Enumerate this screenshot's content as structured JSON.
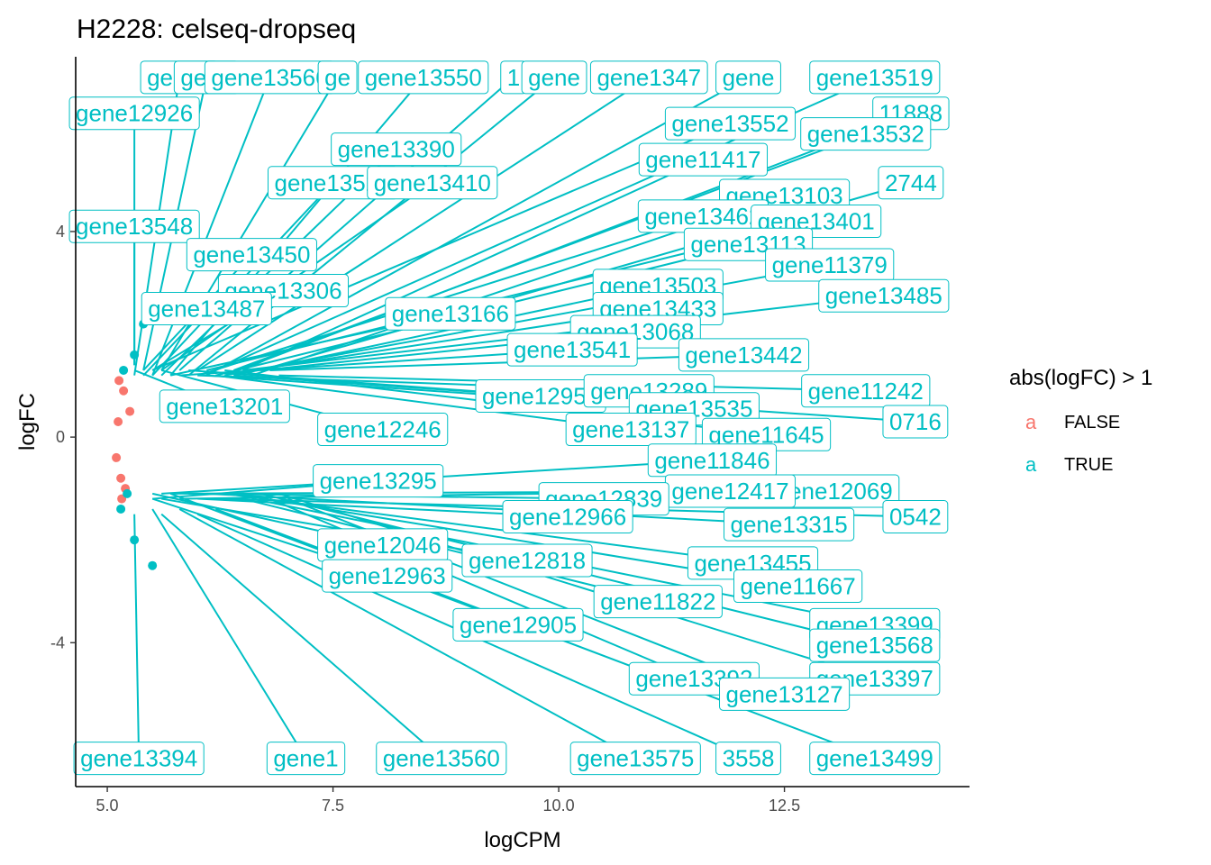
{
  "chart_data": {
    "type": "scatter",
    "title": "H2228: celseq-dropseq",
    "xlabel": "logCPM",
    "ylabel": "logFC",
    "xlim": [
      4.65,
      14.55
    ],
    "ylim": [
      -6.8,
      7.4
    ],
    "x_ticks": [
      5.0,
      7.5,
      10.0,
      12.5
    ],
    "x_tick_labels": [
      "5.0",
      "7.5",
      "10.0",
      "12.5"
    ],
    "y_ticks": [
      -4,
      0,
      4
    ],
    "y_tick_labels": [
      "-4",
      "0",
      "4"
    ],
    "grid": false,
    "legend": {
      "title": "abs(logFC) > 1",
      "position": "right",
      "entries": [
        {
          "label": "FALSE",
          "key": "a",
          "color": "#F8766D"
        },
        {
          "label": "TRUE",
          "key": "a",
          "color": "#00BFC4"
        }
      ]
    },
    "series": [
      {
        "name": "FALSE",
        "color": "#F8766D",
        "points": [
          [
            5.1,
            -0.4
          ],
          [
            5.12,
            0.3
          ],
          [
            5.15,
            -0.8
          ],
          [
            5.18,
            0.9
          ],
          [
            5.2,
            -1.0
          ],
          [
            5.13,
            1.1
          ],
          [
            5.16,
            -1.2
          ],
          [
            5.25,
            0.5
          ]
        ]
      },
      {
        "name": "TRUE",
        "color": "#00BFC4",
        "points": [
          [
            5.18,
            1.3
          ],
          [
            5.22,
            -1.1
          ],
          [
            5.3,
            1.6
          ],
          [
            5.15,
            -1.4
          ],
          [
            5.3,
            -2.0
          ],
          [
            5.4,
            2.2
          ],
          [
            5.5,
            -2.5
          ]
        ]
      }
    ],
    "labels": [
      {
        "text": "gene1",
        "x": 5.8,
        "y": 7.0,
        "px": 5.3,
        "py": 1.2
      },
      {
        "text": "gene",
        "x": 6.1,
        "y": 7.0,
        "px": 5.4,
        "py": 1.3
      },
      {
        "text": "gene13566",
        "x": 6.8,
        "y": 7.0,
        "px": 5.5,
        "py": 1.2
      },
      {
        "text": "ge",
        "x": 7.55,
        "y": 7.0,
        "px": 5.6,
        "py": 1.3
      },
      {
        "text": "gene13550",
        "x": 8.5,
        "y": 7.0,
        "px": 5.7,
        "py": 1.2
      },
      {
        "text": "1",
        "x": 9.5,
        "y": 7.0,
        "px": 5.8,
        "py": 1.3
      },
      {
        "text": "gene",
        "x": 9.95,
        "y": 7.0,
        "px": 5.9,
        "py": 1.2
      },
      {
        "text": "gene1347",
        "x": 11.0,
        "y": 7.0,
        "px": 6.0,
        "py": 1.3
      },
      {
        "text": "gene",
        "x": 12.1,
        "y": 7.0,
        "px": 6.1,
        "py": 1.2
      },
      {
        "text": "gene13519",
        "x": 13.5,
        "y": 7.0,
        "px": 6.2,
        "py": 1.3
      },
      {
        "text": "gene12926",
        "x": 5.3,
        "y": 6.3,
        "px": 5.3,
        "py": 1.4
      },
      {
        "text": "gene13552",
        "x": 11.9,
        "y": 6.1,
        "px": 5.5,
        "py": 1.3
      },
      {
        "text": "11888",
        "x": 13.9,
        "y": 6.3,
        "px": 6.3,
        "py": 1.2
      },
      {
        "text": "gene13532",
        "x": 13.4,
        "y": 5.9,
        "px": 6.4,
        "py": 1.3
      },
      {
        "text": "gene13390",
        "x": 8.2,
        "y": 5.6,
        "px": 5.6,
        "py": 1.2
      },
      {
        "text": "gene11417",
        "x": 11.6,
        "y": 5.4,
        "px": 6.5,
        "py": 1.3
      },
      {
        "text": "gene13524",
        "x": 7.5,
        "y": 4.95,
        "px": 5.5,
        "py": 1.2
      },
      {
        "text": "gene13410",
        "x": 8.6,
        "y": 4.95,
        "px": 5.6,
        "py": 1.3
      },
      {
        "text": "gene13103",
        "x": 12.5,
        "y": 4.7,
        "px": 6.6,
        "py": 1.2
      },
      {
        "text": "2744",
        "x": 13.9,
        "y": 4.95,
        "px": 6.7,
        "py": 1.3
      },
      {
        "text": "gene13548",
        "x": 5.3,
        "y": 4.1,
        "px": 5.3,
        "py": 1.4
      },
      {
        "text": "gene13462",
        "x": 11.6,
        "y": 4.3,
        "px": 6.0,
        "py": 1.2
      },
      {
        "text": "gene13401",
        "x": 12.85,
        "y": 4.2,
        "px": 6.1,
        "py": 1.3
      },
      {
        "text": "gene13113",
        "x": 12.1,
        "y": 3.75,
        "px": 6.2,
        "py": 1.2
      },
      {
        "text": "gene13450",
        "x": 6.6,
        "y": 3.55,
        "px": 5.4,
        "py": 1.3
      },
      {
        "text": "gene11379",
        "x": 13.0,
        "y": 3.35,
        "px": 6.3,
        "py": 1.2
      },
      {
        "text": "gene13306",
        "x": 6.95,
        "y": 2.85,
        "px": 5.5,
        "py": 1.3
      },
      {
        "text": "gene13503",
        "x": 11.1,
        "y": 2.95,
        "px": 6.4,
        "py": 1.2
      },
      {
        "text": "gene13485",
        "x": 13.6,
        "y": 2.75,
        "px": 6.5,
        "py": 1.3
      },
      {
        "text": "gene13487",
        "x": 6.1,
        "y": 2.5,
        "px": 5.4,
        "py": 1.2
      },
      {
        "text": "gene13433",
        "x": 11.1,
        "y": 2.5,
        "px": 6.6,
        "py": 1.3
      },
      {
        "text": "gene13166",
        "x": 8.8,
        "y": 2.4,
        "px": 5.7,
        "py": 1.2
      },
      {
        "text": "gene13068",
        "x": 10.85,
        "y": 2.05,
        "px": 6.7,
        "py": 1.3
      },
      {
        "text": "gene13541",
        "x": 10.15,
        "y": 1.7,
        "px": 5.8,
        "py": 1.2
      },
      {
        "text": "gene13442",
        "x": 12.05,
        "y": 1.6,
        "px": 6.8,
        "py": 1.3
      },
      {
        "text": "gene11242",
        "x": 13.4,
        "y": 0.9,
        "px": 6.9,
        "py": 1.2
      },
      {
        "text": "gene12950",
        "x": 9.8,
        "y": 0.8,
        "px": 5.9,
        "py": 1.3
      },
      {
        "text": "gene13289",
        "x": 11.0,
        "y": 0.9,
        "px": 6.0,
        "py": 1.2
      },
      {
        "text": "gene13201",
        "x": 6.3,
        "y": 0.6,
        "px": 5.3,
        "py": 1.3
      },
      {
        "text": "gene13535",
        "x": 11.5,
        "y": 0.55,
        "px": 6.1,
        "py": 1.2
      },
      {
        "text": "gene12246",
        "x": 8.05,
        "y": 0.15,
        "px": 5.6,
        "py": 1.3
      },
      {
        "text": "gene13137",
        "x": 10.8,
        "y": 0.15,
        "px": 6.2,
        "py": 1.2
      },
      {
        "text": "gene11645",
        "x": 12.3,
        "y": 0.05,
        "px": 6.3,
        "py": 1.3
      },
      {
        "text": "0716",
        "x": 13.95,
        "y": 0.3,
        "px": 6.4,
        "py": 1.2
      },
      {
        "text": "gene11846",
        "x": 11.7,
        "y": -0.45,
        "px": 5.6,
        "py": -1.1
      },
      {
        "text": "gene13295",
        "x": 8.0,
        "y": -0.85,
        "px": 5.5,
        "py": -1.2
      },
      {
        "text": "gene12069",
        "x": 13.05,
        "y": -1.05,
        "px": 5.7,
        "py": -1.1
      },
      {
        "text": "gene12417",
        "x": 11.9,
        "y": -1.05,
        "px": 5.8,
        "py": -1.2
      },
      {
        "text": "gene12839",
        "x": 10.5,
        "y": -1.2,
        "px": 5.9,
        "py": -1.1
      },
      {
        "text": "gene12966",
        "x": 10.1,
        "y": -1.55,
        "px": 6.0,
        "py": -1.2
      },
      {
        "text": "gene13315",
        "x": 12.55,
        "y": -1.7,
        "px": 6.1,
        "py": -1.1
      },
      {
        "text": "0542",
        "x": 13.95,
        "y": -1.55,
        "px": 6.2,
        "py": -1.2
      },
      {
        "text": "gene12046",
        "x": 8.05,
        "y": -2.1,
        "px": 5.5,
        "py": -1.1
      },
      {
        "text": "gene12818",
        "x": 9.65,
        "y": -2.4,
        "px": 5.6,
        "py": -1.2
      },
      {
        "text": "gene13455",
        "x": 12.15,
        "y": -2.45,
        "px": 6.3,
        "py": -1.1
      },
      {
        "text": "gene12963",
        "x": 8.1,
        "y": -2.7,
        "px": 5.5,
        "py": -1.2
      },
      {
        "text": "gene11667",
        "x": 12.65,
        "y": -2.9,
        "px": 6.4,
        "py": -1.1
      },
      {
        "text": "gene11822",
        "x": 11.1,
        "y": -3.2,
        "px": 6.5,
        "py": -1.2
      },
      {
        "text": "gene12905",
        "x": 9.55,
        "y": -3.65,
        "px": 5.7,
        "py": -1.1
      },
      {
        "text": "gene13399",
        "x": 13.5,
        "y": -3.65,
        "px": 6.6,
        "py": -1.2
      },
      {
        "text": "gene13568",
        "x": 13.5,
        "y": -4.05,
        "px": 6.7,
        "py": -1.1
      },
      {
        "text": "gene13392",
        "x": 11.5,
        "y": -4.7,
        "px": 6.8,
        "py": -1.2
      },
      {
        "text": "gene13397",
        "x": 13.5,
        "y": -4.7,
        "px": 6.9,
        "py": -1.1
      },
      {
        "text": "gene13127",
        "x": 12.5,
        "y": -5.0,
        "px": 7.0,
        "py": -1.2
      },
      {
        "text": "gene13394",
        "x": 5.35,
        "y": -6.25,
        "px": 5.3,
        "py": -1.5
      },
      {
        "text": "gene1",
        "x": 7.2,
        "y": -6.25,
        "px": 5.5,
        "py": -1.4
      },
      {
        "text": "gene13560",
        "x": 8.7,
        "y": -6.25,
        "px": 5.6,
        "py": -1.5
      },
      {
        "text": "gene13575",
        "x": 10.85,
        "y": -6.25,
        "px": 5.8,
        "py": -1.4
      },
      {
        "text": "3558",
        "x": 12.1,
        "y": -6.25,
        "px": 6.0,
        "py": -1.5
      },
      {
        "text": "gene13499",
        "x": 13.5,
        "y": -6.25,
        "px": 6.2,
        "py": -1.4
      }
    ]
  }
}
